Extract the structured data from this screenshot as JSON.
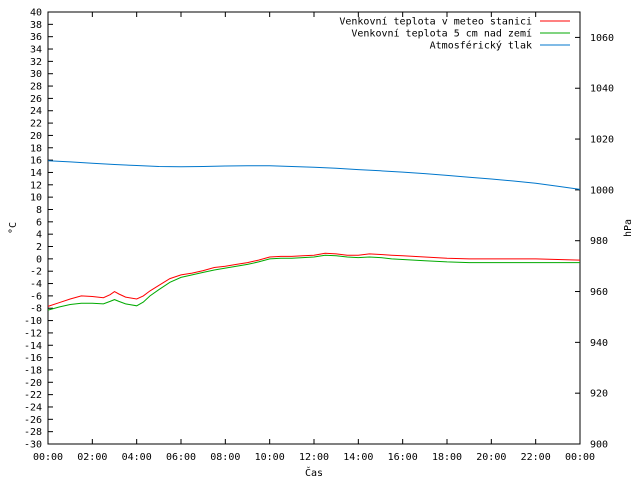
{
  "chart_data": {
    "type": "line",
    "title": "",
    "xlabel": "Čas",
    "ylabel_left": "°C",
    "ylabel_right": "hPa",
    "x_ticks": [
      "00:00",
      "02:00",
      "04:00",
      "06:00",
      "08:00",
      "10:00",
      "12:00",
      "14:00",
      "16:00",
      "18:00",
      "20:00",
      "22:00",
      "00:00"
    ],
    "xlim_hours": [
      0,
      24
    ],
    "ylim_left": [
      -30,
      40
    ],
    "y_left_step": 2,
    "ylim_right": [
      900,
      1070
    ],
    "y_right_ticks": [
      900,
      920,
      940,
      960,
      980,
      1000,
      1020,
      1040,
      1060
    ],
    "grid": false,
    "legend_position": "top-right",
    "series": [
      {
        "name": "Venkovní teplota v meteo stanici",
        "axis": "left",
        "color": "#ff0000",
        "x": [
          0,
          0.5,
          1,
          1.5,
          2,
          2.5,
          2.8,
          3,
          3.2,
          3.5,
          4,
          4.3,
          4.6,
          5,
          5.5,
          6,
          6.5,
          7,
          7.5,
          8,
          8.5,
          9,
          9.5,
          10,
          10.5,
          11,
          11.5,
          12,
          12.5,
          13,
          13.5,
          14,
          14.5,
          15,
          15.5,
          16,
          17,
          18,
          19,
          20,
          21,
          22,
          23,
          24
        ],
        "y": [
          -7.7,
          -7.1,
          -6.5,
          -6.0,
          -6.1,
          -6.3,
          -5.8,
          -5.3,
          -5.7,
          -6.2,
          -6.5,
          -6.0,
          -5.2,
          -4.3,
          -3.2,
          -2.6,
          -2.3,
          -1.9,
          -1.4,
          -1.2,
          -0.9,
          -0.6,
          -0.2,
          0.3,
          0.4,
          0.4,
          0.5,
          0.6,
          0.9,
          0.8,
          0.6,
          0.6,
          0.8,
          0.7,
          0.6,
          0.5,
          0.3,
          0.1,
          0.0,
          0.0,
          0.0,
          0.0,
          -0.1,
          -0.2
        ]
      },
      {
        "name": "Venkovní teplota 5 cm nad zemí",
        "axis": "left",
        "color": "#00aa00",
        "x": [
          0,
          0.5,
          1,
          1.5,
          2,
          2.5,
          2.8,
          3,
          3.2,
          3.5,
          4,
          4.3,
          4.6,
          5,
          5.5,
          6,
          6.5,
          7,
          7.5,
          8,
          8.5,
          9,
          9.5,
          10,
          10.5,
          11,
          11.5,
          12,
          12.5,
          13,
          13.5,
          14,
          14.5,
          15,
          15.5,
          16,
          17,
          18,
          19,
          20,
          21,
          22,
          23,
          24
        ],
        "y": [
          -8.3,
          -7.8,
          -7.4,
          -7.2,
          -7.2,
          -7.3,
          -6.9,
          -6.6,
          -6.9,
          -7.3,
          -7.6,
          -7.0,
          -6.0,
          -5.0,
          -3.8,
          -3.0,
          -2.6,
          -2.2,
          -1.8,
          -1.5,
          -1.2,
          -0.9,
          -0.5,
          0.0,
          0.1,
          0.1,
          0.2,
          0.3,
          0.6,
          0.5,
          0.3,
          0.2,
          0.3,
          0.2,
          0.0,
          -0.1,
          -0.3,
          -0.5,
          -0.6,
          -0.6,
          -0.6,
          -0.6,
          -0.6,
          -0.6
        ]
      },
      {
        "name": "Atmosférický tlak",
        "axis": "right",
        "color": "#0077cc",
        "x": [
          0,
          1,
          2,
          3,
          4,
          5,
          6,
          7,
          8,
          9,
          10,
          11,
          12,
          13,
          14,
          15,
          16,
          17,
          18,
          19,
          20,
          21,
          22,
          23,
          24
        ],
        "y": [
          1011.5,
          1011.0,
          1010.5,
          1010.0,
          1009.6,
          1009.2,
          1009.1,
          1009.2,
          1009.4,
          1009.5,
          1009.5,
          1009.2,
          1008.9,
          1008.5,
          1008.0,
          1007.5,
          1007.0,
          1006.4,
          1005.7,
          1005.0,
          1004.3,
          1003.5,
          1002.6,
          1001.4,
          1000.2
        ]
      }
    ]
  }
}
